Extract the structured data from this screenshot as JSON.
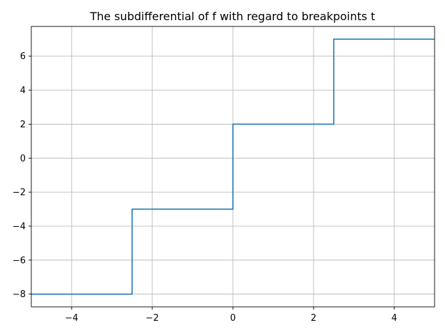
{
  "chart_data": {
    "type": "line",
    "title": "The subdifferential of f with regard to breakpoints t",
    "xlabel": "",
    "ylabel": "",
    "xlim": [
      -5,
      5
    ],
    "ylim": [
      -8.75,
      7.75
    ],
    "x_ticks": [
      -4,
      -2,
      0,
      2,
      4
    ],
    "y_ticks": [
      -8,
      -6,
      -4,
      -2,
      0,
      2,
      4,
      6
    ],
    "x_tick_labels": [
      "−4",
      "−2",
      "0",
      "2",
      "4"
    ],
    "y_tick_labels": [
      "−8",
      "−6",
      "−4",
      "−2",
      "0",
      "2",
      "4",
      "6"
    ],
    "grid": true,
    "series": [
      {
        "color": "#1f77b4",
        "x": [
          -5,
          -2.5,
          -2.5,
          0,
          0,
          2.5,
          2.5,
          5
        ],
        "y": [
          -8,
          -8,
          -3,
          -3,
          2,
          2,
          7,
          7
        ]
      }
    ]
  }
}
